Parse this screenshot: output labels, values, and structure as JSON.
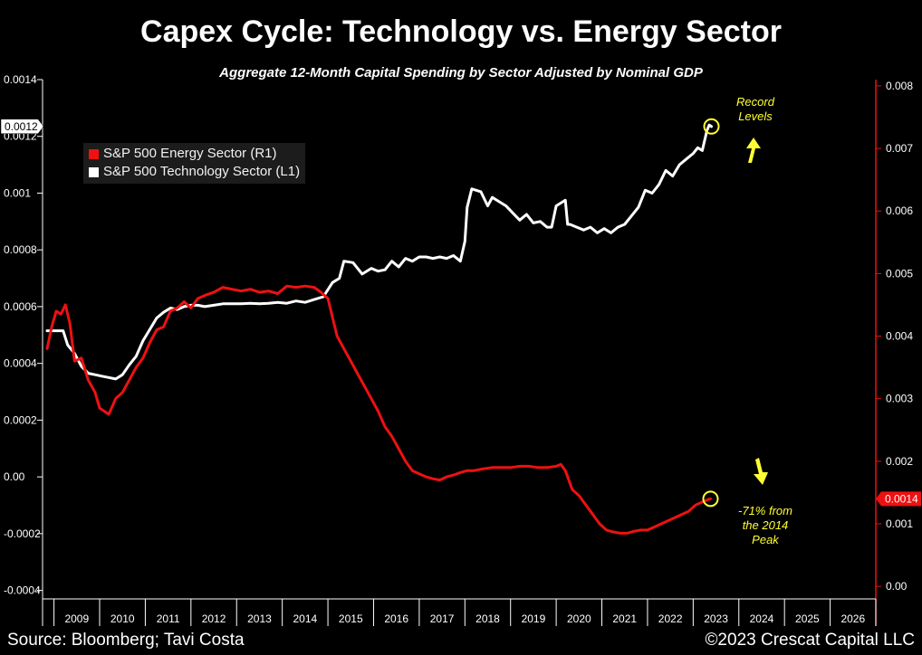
{
  "title": "Capex Cycle: Technology vs. Energy Sector",
  "subtitle": "Aggregate 12-Month Capital Spending by Sector Adjusted by Nominal GDP",
  "footer": {
    "source": "Source: Bloomberg; Tavi Costa",
    "copyright": "©2023 Crescat Capital LLC"
  },
  "colors": {
    "background": "#000000",
    "technology": "#ffffff",
    "energy": "#ee1111",
    "annotation": "#ffff33",
    "grid": "#3a3a3a"
  },
  "annotations": {
    "record": [
      "Record",
      "Levels"
    ],
    "decline": [
      "-71% from",
      "the 2014",
      "Peak"
    ]
  },
  "chart_data": {
    "type": "line",
    "title": "Capex Cycle: Technology vs. Energy Sector",
    "subtitle": "Aggregate 12-Month Capital Spending by Sector Adjusted by Nominal GDP",
    "x_range": [
      2008.75,
      2027.0
    ],
    "x_tick_labels": [
      "2009",
      "2010",
      "2011",
      "2012",
      "2013",
      "2014",
      "2015",
      "2016",
      "2017",
      "2018",
      "2019",
      "2020",
      "2021",
      "2022",
      "2023",
      "2024",
      "2025",
      "2026"
    ],
    "left_axis": {
      "range": [
        -0.00043,
        0.0014
      ],
      "ticks": [
        -0.0004,
        -0.0002,
        0.0,
        0.0002,
        0.0004,
        0.0006,
        0.0008,
        0.001,
        0.0012,
        0.0014
      ],
      "tick_labels": [
        "-0.0004",
        "-0.0002",
        "0.00",
        "0.0002",
        "0.0004",
        "0.0006",
        "0.0008",
        "0.001",
        "0.0012",
        "0.0014"
      ],
      "last_value_label": "0.0012"
    },
    "right_axis": {
      "range": [
        -0.0002,
        0.0081
      ],
      "ticks": [
        0.0,
        0.001,
        0.002,
        0.003,
        0.004,
        0.005,
        0.006,
        0.007,
        0.008
      ],
      "tick_labels": [
        "0.00",
        "0.001",
        "0.002",
        "0.003",
        "0.004",
        "0.005",
        "0.006",
        "0.007",
        "0.008"
      ],
      "last_value_label": "0.0014"
    },
    "legend": [
      "S&P 500 Energy Sector (R1)",
      "S&P 500 Technology Sector (L1)"
    ],
    "legend_position": "top-left",
    "series": [
      {
        "name": "S&P 500 Technology Sector (L1)",
        "axis": "left",
        "color": "#ffffff",
        "x": [
          2008.85,
          2009.2,
          2009.3,
          2009.45,
          2009.6,
          2009.75,
          2009.9,
          2010.05,
          2010.2,
          2010.35,
          2010.5,
          2010.65,
          2010.8,
          2010.95,
          2011.1,
          2011.25,
          2011.4,
          2011.55,
          2011.7,
          2011.85,
          2012.0,
          2012.15,
          2012.3,
          2012.5,
          2012.7,
          2012.9,
          2013.1,
          2013.3,
          2013.5,
          2013.7,
          2013.9,
          2014.1,
          2014.3,
          2014.5,
          2014.7,
          2014.9,
          2015.1,
          2015.25,
          2015.35,
          2015.55,
          2015.75,
          2015.95,
          2016.1,
          2016.25,
          2016.4,
          2016.55,
          2016.7,
          2016.85,
          2017.0,
          2017.15,
          2017.3,
          2017.45,
          2017.6,
          2017.75,
          2017.9,
          2018.0,
          2018.05,
          2018.15,
          2018.35,
          2018.5,
          2018.6,
          2018.75,
          2018.9,
          2019.05,
          2019.2,
          2019.35,
          2019.5,
          2019.65,
          2019.8,
          2019.9,
          2020.0,
          2020.1,
          2020.2,
          2020.25,
          2020.3,
          2020.45,
          2020.6,
          2020.75,
          2020.9,
          2021.05,
          2021.2,
          2021.35,
          2021.5,
          2021.65,
          2021.8,
          2021.95,
          2022.1,
          2022.25,
          2022.4,
          2022.55,
          2022.7,
          2022.85,
          2023.0,
          2023.1,
          2023.2,
          2023.3,
          2023.35,
          2023.4
        ],
        "y": [
          0.000515,
          0.000515,
          0.000465,
          0.000435,
          0.00039,
          0.000365,
          0.00036,
          0.000355,
          0.00035,
          0.000345,
          0.00036,
          0.000395,
          0.000425,
          0.00048,
          0.00052,
          0.00056,
          0.00058,
          0.000595,
          0.00059,
          0.0006,
          0.000605,
          0.000605,
          0.0006,
          0.000605,
          0.00061,
          0.00061,
          0.00061,
          0.000612,
          0.00061,
          0.000612,
          0.000615,
          0.000612,
          0.00062,
          0.000615,
          0.000625,
          0.000635,
          0.000685,
          0.0007,
          0.00076,
          0.000755,
          0.000715,
          0.000735,
          0.000725,
          0.00073,
          0.00076,
          0.00074,
          0.00077,
          0.00076,
          0.000775,
          0.000775,
          0.00077,
          0.000775,
          0.00077,
          0.00078,
          0.00076,
          0.00083,
          0.00095,
          0.001015,
          0.001005,
          0.000955,
          0.000985,
          0.00097,
          0.000955,
          0.00093,
          0.000905,
          0.000925,
          0.000895,
          0.0009,
          0.00088,
          0.00088,
          0.000955,
          0.000965,
          0.000975,
          0.00089,
          0.00089,
          0.00088,
          0.00087,
          0.00088,
          0.00086,
          0.000875,
          0.00086,
          0.00088,
          0.00089,
          0.00092,
          0.00095,
          0.00101,
          0.001,
          0.00103,
          0.00108,
          0.00106,
          0.0011,
          0.00112,
          0.00114,
          0.00116,
          0.00115,
          0.00122,
          0.00124,
          0.001235
        ]
      },
      {
        "name": "S&P 500 Energy Sector (R1)",
        "axis": "right",
        "color": "#ee1111",
        "x": [
          2008.85,
          2008.95,
          2009.05,
          2009.15,
          2009.25,
          2009.35,
          2009.45,
          2009.6,
          2009.75,
          2009.9,
          2010.0,
          2010.1,
          2010.2,
          2010.35,
          2010.5,
          2010.65,
          2010.8,
          2010.95,
          2011.1,
          2011.25,
          2011.4,
          2011.55,
          2011.7,
          2011.85,
          2012.0,
          2012.15,
          2012.3,
          2012.5,
          2012.7,
          2012.9,
          2013.1,
          2013.3,
          2013.5,
          2013.7,
          2013.9,
          2014.1,
          2014.3,
          2014.5,
          2014.7,
          2014.85,
          2015.0,
          2015.1,
          2015.2,
          2015.35,
          2015.5,
          2015.65,
          2015.8,
          2015.95,
          2016.1,
          2016.25,
          2016.4,
          2016.55,
          2016.7,
          2016.85,
          2017.0,
          2017.15,
          2017.3,
          2017.45,
          2017.6,
          2017.75,
          2017.9,
          2018.05,
          2018.2,
          2018.4,
          2018.6,
          2018.8,
          2019.0,
          2019.2,
          2019.4,
          2019.6,
          2019.8,
          2020.0,
          2020.1,
          2020.2,
          2020.35,
          2020.5,
          2020.65,
          2020.8,
          2020.95,
          2021.1,
          2021.25,
          2021.4,
          2021.55,
          2021.7,
          2021.85,
          2022.0,
          2022.15,
          2022.3,
          2022.45,
          2022.6,
          2022.75,
          2022.9,
          2023.05,
          2023.2,
          2023.3,
          2023.38
        ],
        "y": [
          0.0038,
          0.00415,
          0.0044,
          0.00435,
          0.0045,
          0.0042,
          0.0036,
          0.00365,
          0.0033,
          0.0031,
          0.00285,
          0.0028,
          0.00275,
          0.003,
          0.0031,
          0.0033,
          0.0035,
          0.00365,
          0.0039,
          0.0041,
          0.00415,
          0.0044,
          0.00445,
          0.00455,
          0.00445,
          0.0046,
          0.00465,
          0.0047,
          0.00478,
          0.00475,
          0.00472,
          0.00475,
          0.0047,
          0.00472,
          0.00468,
          0.0048,
          0.00478,
          0.0048,
          0.00478,
          0.0047,
          0.0046,
          0.0043,
          0.004,
          0.0038,
          0.0036,
          0.0034,
          0.0032,
          0.003,
          0.0028,
          0.00255,
          0.0024,
          0.0022,
          0.002,
          0.00185,
          0.0018,
          0.00175,
          0.00172,
          0.0017,
          0.00175,
          0.00178,
          0.00182,
          0.00185,
          0.00185,
          0.00188,
          0.0019,
          0.0019,
          0.0019,
          0.00192,
          0.00192,
          0.0019,
          0.0019,
          0.00192,
          0.00195,
          0.00185,
          0.00155,
          0.00145,
          0.0013,
          0.00115,
          0.001,
          0.0009,
          0.00087,
          0.00085,
          0.00085,
          0.00088,
          0.0009,
          0.0009,
          0.00095,
          0.001,
          0.00105,
          0.0011,
          0.00115,
          0.0012,
          0.0013,
          0.00135,
          0.00138,
          0.0014
        ]
      }
    ]
  }
}
